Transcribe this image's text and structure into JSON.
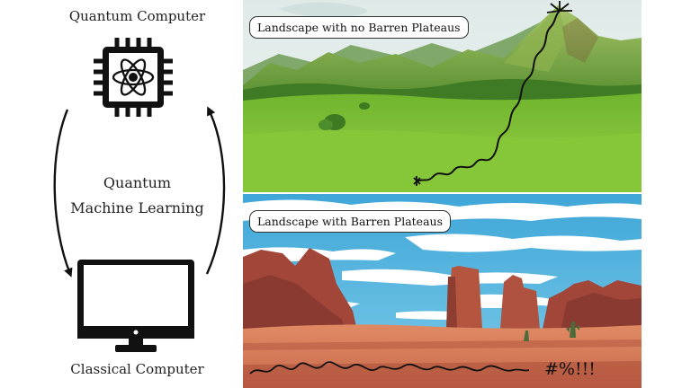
{
  "left": {
    "quantum_computer_label": "Quantum Computer",
    "qml_line1": "Quantum",
    "qml_line2": "Machine Learning",
    "classical_computer_label": "Classical Computer"
  },
  "icons": [
    "cpu-atom-icon",
    "monitor-icon"
  ],
  "landscapes": {
    "top_label": "Landscape with no Barren Plateaus",
    "bottom_label": "Landscape with Barren Plateaus",
    "bottom_symbols": "#%!!!"
  },
  "colors": {
    "grass": "#7fc23a",
    "sky_top": "#e8f0f0",
    "sky_bottom": "#55b7e3",
    "canyon_rock": "#a64a3c",
    "ground": "#d9755a"
  }
}
